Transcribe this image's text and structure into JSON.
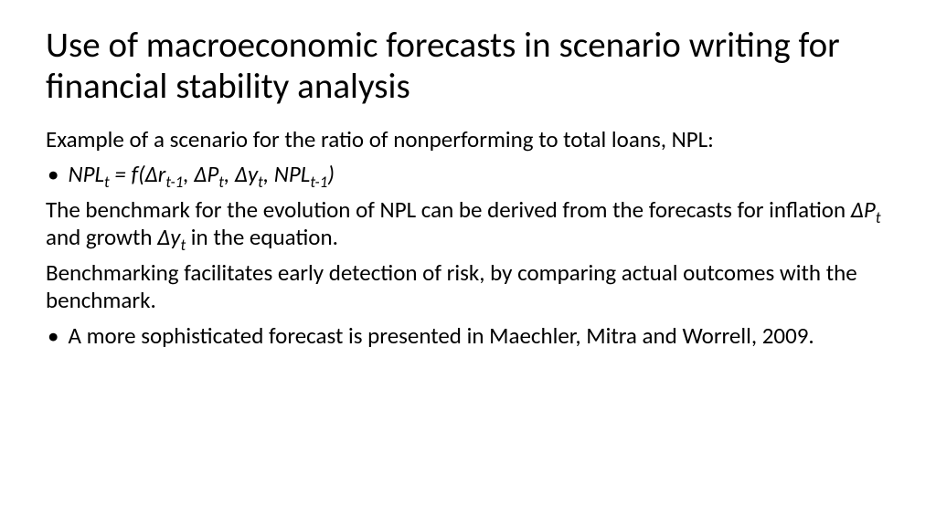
{
  "title": "Use of macroeconomic forecasts in scenario writing for financial stability analysis",
  "intro": "Example of a scenario for the ratio of nonperforming to total loans, NPL:",
  "eq": {
    "lhs_var": "NPL",
    "lhs_sub": "t",
    "eq_sign": " = ",
    "f": "f(Δr",
    "sub1": "t-1",
    "sep1": ", ΔP",
    "sub2": "t",
    "sep2": ", Δy",
    "sub3": "t",
    "sep3": ", NPL",
    "sub4": "t-1",
    "close": ")"
  },
  "para2a": "The benchmark for the evolution of NPL can be derived from the forecasts for inflation ",
  "para2_dp": "ΔP",
  "para2_dp_sub": "t",
  "para2b": " and growth ",
  "para2_dy": "Δy",
  "para2_dy_sub": "t",
  "para2c": " in the equation.",
  "para3": "Benchmarking facilitates early detection of risk, by comparing actual outcomes with the benchmark.",
  "bullet2": "A more sophisticated forecast is presented in Maechler, Mitra and Worrell, 2009.",
  "colors": {
    "background": "#ffffff",
    "text": "#000000"
  },
  "typography": {
    "title_fontsize": 39,
    "body_fontsize": 25,
    "font_family": "Calibri"
  }
}
